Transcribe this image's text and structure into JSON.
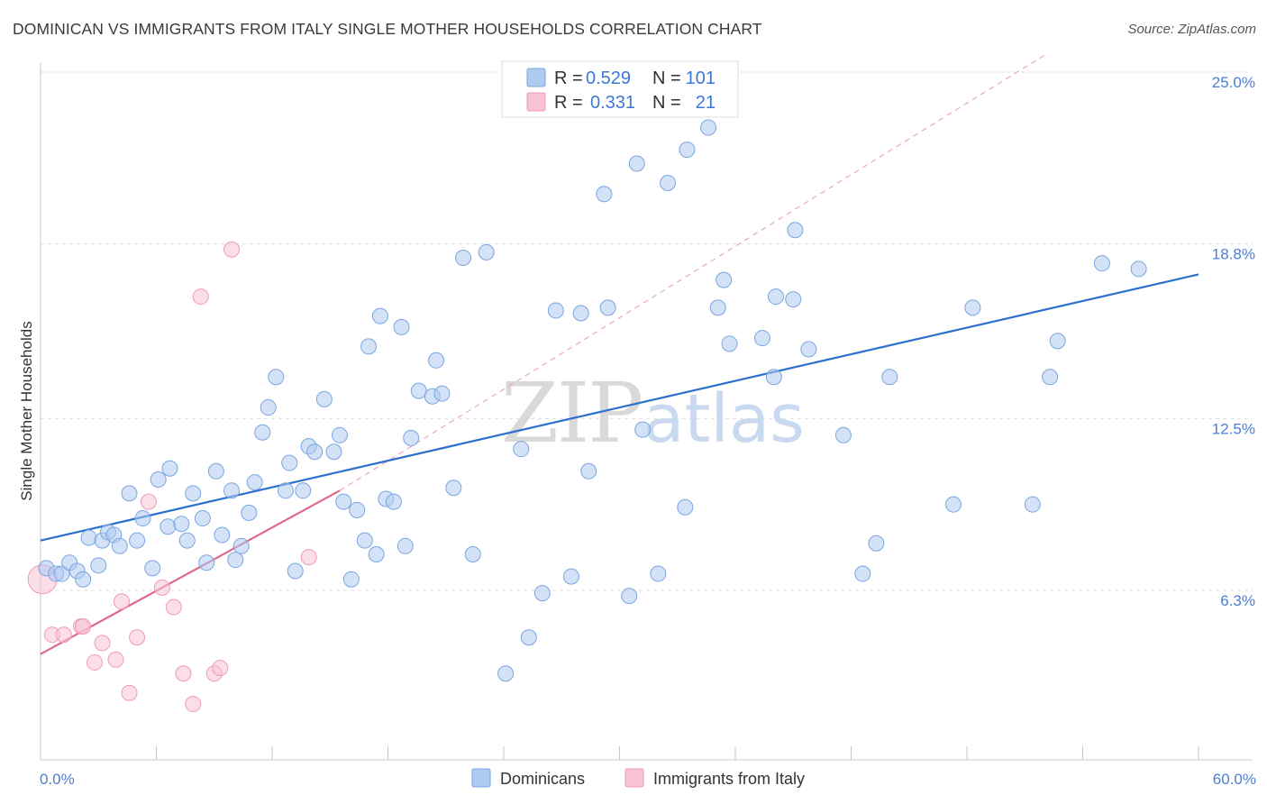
{
  "header": {
    "title": "DOMINICAN VS IMMIGRANTS FROM ITALY SINGLE MOTHER HOUSEHOLDS CORRELATION CHART",
    "source": "Source: ZipAtlas.com"
  },
  "legend_top": {
    "rows": [
      {
        "r_label": "R =",
        "r_value": "0.529",
        "n_label": "N =",
        "n_value": "101"
      },
      {
        "r_label": "R =",
        "r_value": "0.331",
        "n_label": "N =",
        "n_value": "21"
      }
    ]
  },
  "legend_bottom": {
    "items": [
      "Dominicans",
      "Immigrants from Italy"
    ]
  },
  "watermark": {
    "zip": "ZIP",
    "atlas": "atlas"
  },
  "colors": {
    "blue_fill": "#aecbf0",
    "blue_stroke": "#7aa6e0",
    "blue_line": "#2b6fcf",
    "pink_fill": "#f7c3d3",
    "pink_stroke": "#ee9bb5",
    "pink_line": "#e0678f",
    "tick_text": "#4a7fd4",
    "grid": "#dddddd"
  },
  "chart_data": {
    "type": "scatter",
    "title": "DOMINICAN VS IMMIGRANTS FROM ITALY SINGLE MOTHER HOUSEHOLDS CORRELATION CHART",
    "xlabel": "",
    "ylabel": "Single Mother Households",
    "xlim": [
      0,
      60
    ],
    "ylim": [
      0,
      25.6
    ],
    "x_tick_labels": [
      "0.0%",
      "60.0%"
    ],
    "y_ticks": [
      6.3,
      12.5,
      18.8,
      25.0
    ],
    "y_tick_labels": [
      "6.3%",
      "12.5%",
      "18.8%",
      "25.0%"
    ],
    "grid": true,
    "legend_position": "top-center",
    "series": [
      {
        "name": "Dominicans",
        "R": 0.529,
        "N": 101,
        "trend": {
          "x": [
            0,
            60
          ],
          "y": [
            8.1,
            17.7
          ]
        },
        "points": [
          [
            0.3,
            7.1
          ],
          [
            0.8,
            6.9
          ],
          [
            1.1,
            6.9
          ],
          [
            1.5,
            7.3
          ],
          [
            1.9,
            7.0
          ],
          [
            2.2,
            6.7
          ],
          [
            2.5,
            8.2
          ],
          [
            3.0,
            7.2
          ],
          [
            3.2,
            8.1
          ],
          [
            3.5,
            8.4
          ],
          [
            3.8,
            8.3
          ],
          [
            4.1,
            7.9
          ],
          [
            4.6,
            9.8
          ],
          [
            5.0,
            8.1
          ],
          [
            5.3,
            8.9
          ],
          [
            5.8,
            7.1
          ],
          [
            6.1,
            10.3
          ],
          [
            6.7,
            10.7
          ],
          [
            6.6,
            8.6
          ],
          [
            7.3,
            8.7
          ],
          [
            7.6,
            8.1
          ],
          [
            7.9,
            9.8
          ],
          [
            8.4,
            8.9
          ],
          [
            8.6,
            7.3
          ],
          [
            9.1,
            10.6
          ],
          [
            9.4,
            8.3
          ],
          [
            9.9,
            9.9
          ],
          [
            10.1,
            7.4
          ],
          [
            10.4,
            7.9
          ],
          [
            10.8,
            9.1
          ],
          [
            11.1,
            10.2
          ],
          [
            11.5,
            12.0
          ],
          [
            11.8,
            12.9
          ],
          [
            12.2,
            14.0
          ],
          [
            12.7,
            9.9
          ],
          [
            12.9,
            10.9
          ],
          [
            13.2,
            7.0
          ],
          [
            13.6,
            9.9
          ],
          [
            13.9,
            11.5
          ],
          [
            14.2,
            11.3
          ],
          [
            14.7,
            13.2
          ],
          [
            15.2,
            11.3
          ],
          [
            15.5,
            11.9
          ],
          [
            15.7,
            9.5
          ],
          [
            16.1,
            6.7
          ],
          [
            16.4,
            9.2
          ],
          [
            16.8,
            8.1
          ],
          [
            17.0,
            15.1
          ],
          [
            17.4,
            7.6
          ],
          [
            17.6,
            16.2
          ],
          [
            17.9,
            9.6
          ],
          [
            18.3,
            9.5
          ],
          [
            18.7,
            15.8
          ],
          [
            18.9,
            7.9
          ],
          [
            19.2,
            11.8
          ],
          [
            19.6,
            13.5
          ],
          [
            20.3,
            13.3
          ],
          [
            20.5,
            14.6
          ],
          [
            20.8,
            13.4
          ],
          [
            21.4,
            10.0
          ],
          [
            21.9,
            18.3
          ],
          [
            22.4,
            7.6
          ],
          [
            23.1,
            18.5
          ],
          [
            24.1,
            3.3
          ],
          [
            24.9,
            11.4
          ],
          [
            25.3,
            4.6
          ],
          [
            26.7,
            16.4
          ],
          [
            27.5,
            6.8
          ],
          [
            28.0,
            16.3
          ],
          [
            28.4,
            10.6
          ],
          [
            29.2,
            20.6
          ],
          [
            29.4,
            16.5
          ],
          [
            30.5,
            6.1
          ],
          [
            30.9,
            21.7
          ],
          [
            31.2,
            12.1
          ],
          [
            32.0,
            6.9
          ],
          [
            32.5,
            21.0
          ],
          [
            33.4,
            9.3
          ],
          [
            33.5,
            22.2
          ],
          [
            34.6,
            23.0
          ],
          [
            35.1,
            16.5
          ],
          [
            35.4,
            17.5
          ],
          [
            35.7,
            15.2
          ],
          [
            37.4,
            15.4
          ],
          [
            38.0,
            14.0
          ],
          [
            38.1,
            16.9
          ],
          [
            39.0,
            16.8
          ],
          [
            39.1,
            19.3
          ],
          [
            39.8,
            15.0
          ],
          [
            41.6,
            11.9
          ],
          [
            42.6,
            6.9
          ],
          [
            43.3,
            8.0
          ],
          [
            44.0,
            14.0
          ],
          [
            47.3,
            9.4
          ],
          [
            48.3,
            16.5
          ],
          [
            51.4,
            9.4
          ],
          [
            52.3,
            14.0
          ],
          [
            52.7,
            15.3
          ],
          [
            56.9,
            17.9
          ],
          [
            55.0,
            18.1
          ],
          [
            26.0,
            6.2
          ]
        ]
      },
      {
        "name": "Immigrants from Italy",
        "R": 0.331,
        "N": 21,
        "trend": {
          "x": [
            0,
            15.5
          ],
          "y": [
            4.0,
            9.9
          ]
        },
        "trend_extension": {
          "x": [
            15.5,
            52.0
          ],
          "y": [
            9.9,
            25.6
          ]
        },
        "points": [
          [
            0.1,
            6.7
          ],
          [
            0.6,
            4.7
          ],
          [
            1.2,
            4.7
          ],
          [
            2.1,
            5.0
          ],
          [
            2.2,
            5.0
          ],
          [
            2.8,
            3.7
          ],
          [
            3.2,
            4.4
          ],
          [
            3.9,
            3.8
          ],
          [
            4.2,
            5.9
          ],
          [
            4.6,
            2.6
          ],
          [
            5.0,
            4.6
          ],
          [
            5.6,
            9.5
          ],
          [
            6.3,
            6.4
          ],
          [
            6.9,
            5.7
          ],
          [
            7.4,
            3.3
          ],
          [
            7.9,
            2.2
          ],
          [
            8.3,
            16.9
          ],
          [
            9.0,
            3.3
          ],
          [
            9.3,
            3.5
          ],
          [
            9.9,
            18.6
          ],
          [
            13.9,
            7.5
          ]
        ]
      }
    ]
  }
}
